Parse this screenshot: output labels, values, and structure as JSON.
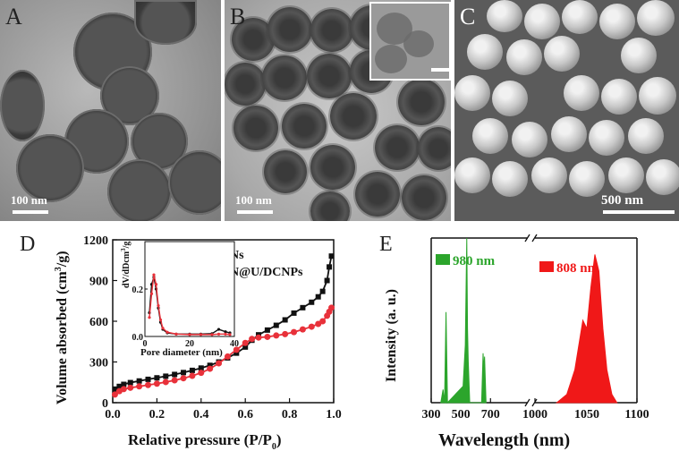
{
  "panel_a": {
    "letter": "A",
    "scale_label": "100 nm"
  },
  "panel_b": {
    "letter": "B",
    "scale_label": "100 nm"
  },
  "panel_c": {
    "letter": "C",
    "scale_label": "500 nm"
  },
  "chart_data": [
    {
      "panel": "D",
      "type": "line",
      "xlabel": "Relative pressure (P/P",
      "xlabel_sub": "0",
      "xlabel_close": ")",
      "ylabel": "Volume absorbed (cm",
      "ylabel_sup": "3",
      "ylabel_close": "/g)",
      "xlim": [
        0.0,
        1.0
      ],
      "ylim": [
        0,
        1200
      ],
      "xticks": [
        "0.0",
        "0.2",
        "0.4",
        "0.6",
        "0.8",
        "1.0"
      ],
      "yticks": [
        "0",
        "300",
        "600",
        "900",
        "1200"
      ],
      "series": [
        {
          "name": "MSNs",
          "color": "#111111",
          "marker": "square",
          "x": [
            0.01,
            0.03,
            0.05,
            0.08,
            0.12,
            0.16,
            0.2,
            0.24,
            0.28,
            0.32,
            0.36,
            0.4,
            0.44,
            0.48,
            0.52,
            0.56,
            0.6,
            0.63,
            0.66,
            0.7,
            0.74,
            0.78,
            0.82,
            0.86,
            0.9,
            0.93,
            0.95,
            0.97,
            0.98,
            0.99
          ],
          "y": [
            100,
            120,
            135,
            148,
            160,
            172,
            183,
            195,
            208,
            222,
            238,
            255,
            275,
            300,
            330,
            365,
            410,
            460,
            500,
            535,
            570,
            610,
            660,
            700,
            740,
            780,
            820,
            900,
            1000,
            1080
          ]
        },
        {
          "name": "MSN@U/DCNPs",
          "color": "#e8313a",
          "marker": "circle",
          "x": [
            0.01,
            0.03,
            0.05,
            0.08,
            0.12,
            0.16,
            0.2,
            0.24,
            0.28,
            0.32,
            0.36,
            0.4,
            0.44,
            0.48,
            0.52,
            0.56,
            0.6,
            0.63,
            0.66,
            0.7,
            0.74,
            0.78,
            0.82,
            0.86,
            0.9,
            0.93,
            0.95,
            0.97,
            0.98,
            0.99
          ],
          "y": [
            60,
            85,
            100,
            110,
            120,
            130,
            140,
            152,
            165,
            180,
            198,
            220,
            250,
            290,
            340,
            390,
            440,
            470,
            480,
            485,
            495,
            505,
            520,
            540,
            560,
            580,
            600,
            640,
            670,
            700
          ]
        }
      ],
      "inset": {
        "xlabel": "Pore diameter (nm)",
        "ylabel": "dV/dDcm",
        "ylabel_sup": "3",
        "ylabel_close": "/g",
        "xlim": [
          0,
          40
        ],
        "ylim": [
          0,
          0.4
        ],
        "xticks": [
          "0",
          "20",
          "40"
        ],
        "yticks": [
          "0.0",
          "0.2"
        ],
        "series": [
          {
            "name": "MSNs",
            "color": "#111111",
            "x": [
              2,
              3,
              4,
              5,
              6,
              7,
              8,
              10,
              14,
              20,
              25,
              30,
              33,
              36,
              38
            ],
            "y": [
              0.1,
              0.22,
              0.25,
              0.2,
              0.12,
              0.06,
              0.03,
              0.015,
              0.01,
              0.01,
              0.01,
              0.012,
              0.03,
              0.02,
              0.015
            ]
          },
          {
            "name": "MSN@U/DCNPs",
            "color": "#e8313a",
            "x": [
              2,
              3,
              4,
              5,
              6,
              7,
              8,
              10,
              14,
              20,
              25,
              30,
              33,
              36,
              38
            ],
            "y": [
              0.08,
              0.18,
              0.26,
              0.22,
              0.13,
              0.07,
              0.035,
              0.018,
              0.01,
              0.008,
              0.008,
              0.008,
              0.01,
              0.01,
              0.008
            ]
          }
        ]
      }
    },
    {
      "panel": "E",
      "type": "area",
      "xlabel": "Wavelength (nm)",
      "ylabel": "Intensity (a. u.)",
      "xticks": [
        "300",
        "500",
        "700",
        "1000",
        "1050",
        "1100"
      ],
      "axis_break": true,
      "ylim": [
        0,
        1
      ],
      "series": [
        {
          "name": "980 nm",
          "color": "#2ca52c",
          "x": [
            365,
            380,
            390,
            400,
            410,
            515,
            530,
            540,
            545,
            550,
            560,
            640,
            650,
            655,
            660,
            670
          ],
          "y": [
            0.0,
            0.08,
            0.0,
            0.55,
            0.0,
            0.1,
            0.35,
            1.0,
            0.45,
            0.25,
            0.0,
            0.0,
            0.3,
            0.2,
            0.28,
            0.0
          ]
        },
        {
          "name": "808 nm",
          "color": "#f01818",
          "x": [
            1020,
            1030,
            1038,
            1042,
            1046,
            1050,
            1054,
            1058,
            1062,
            1066,
            1070,
            1075,
            1080
          ],
          "y": [
            0.0,
            0.05,
            0.2,
            0.35,
            0.5,
            0.45,
            0.7,
            0.9,
            0.8,
            0.45,
            0.2,
            0.05,
            0.0
          ]
        }
      ]
    }
  ]
}
